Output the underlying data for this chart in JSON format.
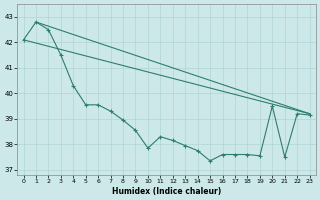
{
  "xlabel": "Humidex (Indice chaleur)",
  "bg_color": "#cce8e8",
  "grid_color": "#b0d4d4",
  "line_color": "#2e7d6e",
  "xlim": [
    -0.5,
    23.5
  ],
  "ylim": [
    36.8,
    43.5
  ],
  "yticks": [
    37,
    38,
    39,
    40,
    41,
    42,
    43
  ],
  "xticks": [
    0,
    1,
    2,
    3,
    4,
    5,
    6,
    7,
    8,
    9,
    10,
    11,
    12,
    13,
    14,
    15,
    16,
    17,
    18,
    19,
    20,
    21,
    22,
    23
  ],
  "trend1_x": [
    0,
    23
  ],
  "trend1_y": [
    42.1,
    39.2
  ],
  "trend2_x": [
    1,
    23
  ],
  "trend2_y": [
    42.8,
    39.2
  ],
  "main_x": [
    0,
    1,
    2,
    3,
    4,
    5,
    6,
    7,
    8,
    9,
    10,
    11,
    12,
    13,
    14,
    15,
    16,
    17,
    18,
    19,
    20,
    21,
    22,
    23
  ],
  "main_y": [
    42.1,
    42.8,
    42.5,
    41.5,
    40.3,
    39.55,
    39.55,
    39.3,
    38.95,
    38.55,
    37.85,
    38.3,
    38.15,
    37.95,
    37.75,
    37.35,
    37.6,
    37.6,
    37.6,
    37.55,
    39.5,
    37.5,
    39.2,
    39.15
  ]
}
